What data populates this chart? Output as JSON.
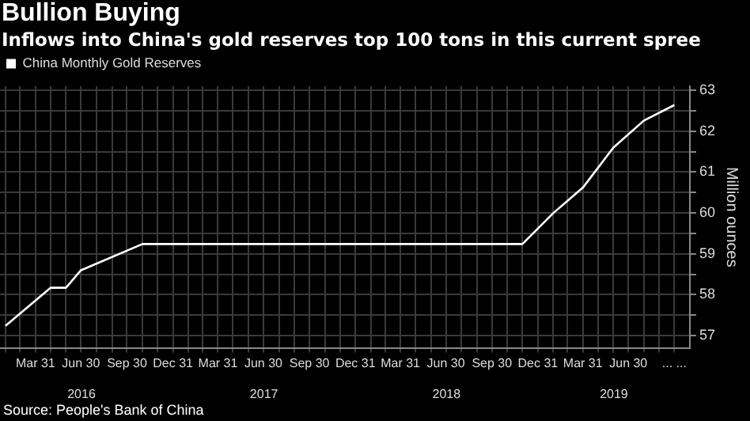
{
  "chart_data": {
    "type": "line",
    "title": "Bullion Buying",
    "subtitle": "Inflows into China's gold reserves top 100 tons in this current spree",
    "ylabel": "Million ounces",
    "annotations": [
      "Source: People's Bank of China"
    ],
    "x": [
      "2016-01-31",
      "2016-04-30",
      "2016-05-31",
      "2016-06-30",
      "2016-10-31",
      "2018-11-30",
      "2019-01-31",
      "2019-03-31",
      "2019-05-31",
      "2019-07-31",
      "2019-09-30"
    ],
    "series": [
      {
        "name": "China Monthly Gold Reserves",
        "color": "#ffffff",
        "values": [
          57.24,
          58.17,
          58.17,
          58.6,
          59.24,
          59.24,
          60.0,
          60.62,
          61.6,
          62.26,
          62.64
        ]
      }
    ],
    "xlim": [
      "2016-01-20",
      "2019-10-31"
    ],
    "xticks": [
      {
        "value": "2016-01-31",
        "label": null
      },
      {
        "value": "2016-02-29",
        "label": null
      },
      {
        "value": "2016-03-31",
        "label": "Mar 31"
      },
      {
        "value": "2016-04-30",
        "label": null
      },
      {
        "value": "2016-05-31",
        "label": null
      },
      {
        "value": "2016-06-30",
        "label": "Jun 30"
      },
      {
        "value": "2016-07-31",
        "label": null
      },
      {
        "value": "2016-08-31",
        "label": null
      },
      {
        "value": "2016-09-30",
        "label": "Sep 30"
      },
      {
        "value": "2016-10-31",
        "label": null
      },
      {
        "value": "2016-11-30",
        "label": null
      },
      {
        "value": "2016-12-31",
        "label": "Dec 31"
      },
      {
        "value": "2017-01-31",
        "label": null
      },
      {
        "value": "2017-02-28",
        "label": null
      },
      {
        "value": "2017-03-31",
        "label": "Mar 31"
      },
      {
        "value": "2017-04-30",
        "label": null
      },
      {
        "value": "2017-05-31",
        "label": null
      },
      {
        "value": "2017-06-30",
        "label": "Jun 30"
      },
      {
        "value": "2017-07-31",
        "label": null
      },
      {
        "value": "2017-08-31",
        "label": null
      },
      {
        "value": "2017-09-30",
        "label": "Sep 30"
      },
      {
        "value": "2017-10-31",
        "label": null
      },
      {
        "value": "2017-11-30",
        "label": null
      },
      {
        "value": "2017-12-31",
        "label": "Dec 31"
      },
      {
        "value": "2018-01-31",
        "label": null
      },
      {
        "value": "2018-02-28",
        "label": null
      },
      {
        "value": "2018-03-31",
        "label": "Mar 31"
      },
      {
        "value": "2018-04-30",
        "label": null
      },
      {
        "value": "2018-05-31",
        "label": null
      },
      {
        "value": "2018-06-30",
        "label": "Jun 30"
      },
      {
        "value": "2018-07-31",
        "label": null
      },
      {
        "value": "2018-08-31",
        "label": null
      },
      {
        "value": "2018-09-30",
        "label": "Sep 30"
      },
      {
        "value": "2018-10-31",
        "label": null
      },
      {
        "value": "2018-11-30",
        "label": null
      },
      {
        "value": "2018-12-31",
        "label": "Dec 31"
      },
      {
        "value": "2019-01-31",
        "label": null
      },
      {
        "value": "2019-02-28",
        "label": null
      },
      {
        "value": "2019-03-31",
        "label": "Mar 31"
      },
      {
        "value": "2019-04-30",
        "label": null
      },
      {
        "value": "2019-05-31",
        "label": null
      },
      {
        "value": "2019-06-30",
        "label": "Jun 30"
      },
      {
        "value": "2019-07-31",
        "label": null
      },
      {
        "value": "2019-08-31",
        "label": null
      },
      {
        "value": "2019-09-30",
        "label": "... ..."
      }
    ],
    "x2lim": [
      "2016-01-20",
      "2019-10-31"
    ],
    "x2ticks": [
      {
        "value": "2016-07-01",
        "label": "2016"
      },
      {
        "value": "2017-07-01",
        "label": "2017"
      },
      {
        "value": "2018-07-01",
        "label": "2018"
      },
      {
        "value": "2019-06-01",
        "label": "2019"
      }
    ],
    "ylim": [
      56.7,
      63.1
    ],
    "yticks": [
      57,
      {
        "value": 57.5,
        "label": null
      },
      58,
      {
        "value": 58.5,
        "label": null
      },
      59,
      {
        "value": 59.5,
        "label": null
      },
      60,
      {
        "value": 60.5,
        "label": null
      },
      61,
      {
        "value": 61.5,
        "label": null
      },
      62,
      {
        "value": 62.5,
        "label": null
      },
      63
    ],
    "grid": true,
    "legend": "top left",
    "marker": "none",
    "line_style": "solid"
  }
}
